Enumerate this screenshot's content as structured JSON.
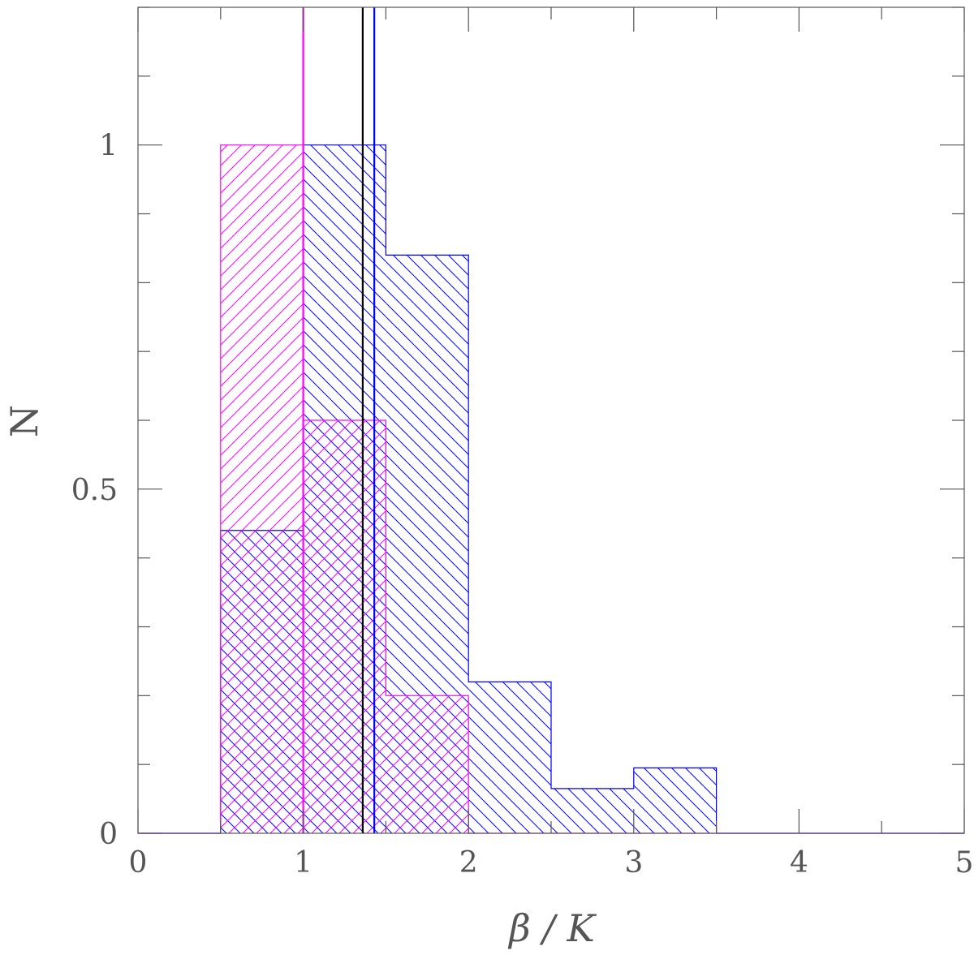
{
  "chart_data": {
    "type": "bar",
    "title": "",
    "xlabel": "β / K",
    "ylabel": "N",
    "xlim": [
      0,
      5
    ],
    "ylim": [
      0,
      1.2
    ],
    "x_ticks": [
      0,
      1,
      2,
      3,
      4,
      5
    ],
    "x_tick_labels": [
      "0",
      "1",
      "2",
      "3",
      "4",
      "5"
    ],
    "y_ticks": [
      0,
      0.5,
      1
    ],
    "y_tick_labels": [
      "0",
      "0.5",
      "1"
    ],
    "x_minor_step": 0.5,
    "y_minor_step": 0.1,
    "grid": false,
    "legend": "none",
    "bin_edges": [
      0.5,
      1.0,
      1.5,
      2.0,
      2.5,
      3.0,
      3.5
    ],
    "series": [
      {
        "color": "#0000ff",
        "hatch": "backslash",
        "values": [
          0.44,
          1.0,
          0.84,
          0.22,
          0.065,
          0.095
        ]
      },
      {
        "color": "#ff00ff",
        "hatch": "slash",
        "values": [
          1.0,
          0.6,
          0.2,
          0,
          0,
          0
        ]
      }
    ],
    "vertical_lines": [
      {
        "x": 1.0,
        "color": "#ff00ff"
      },
      {
        "x": 1.36,
        "color": "#000000"
      },
      {
        "x": 1.43,
        "color": "#0000ff"
      }
    ]
  }
}
